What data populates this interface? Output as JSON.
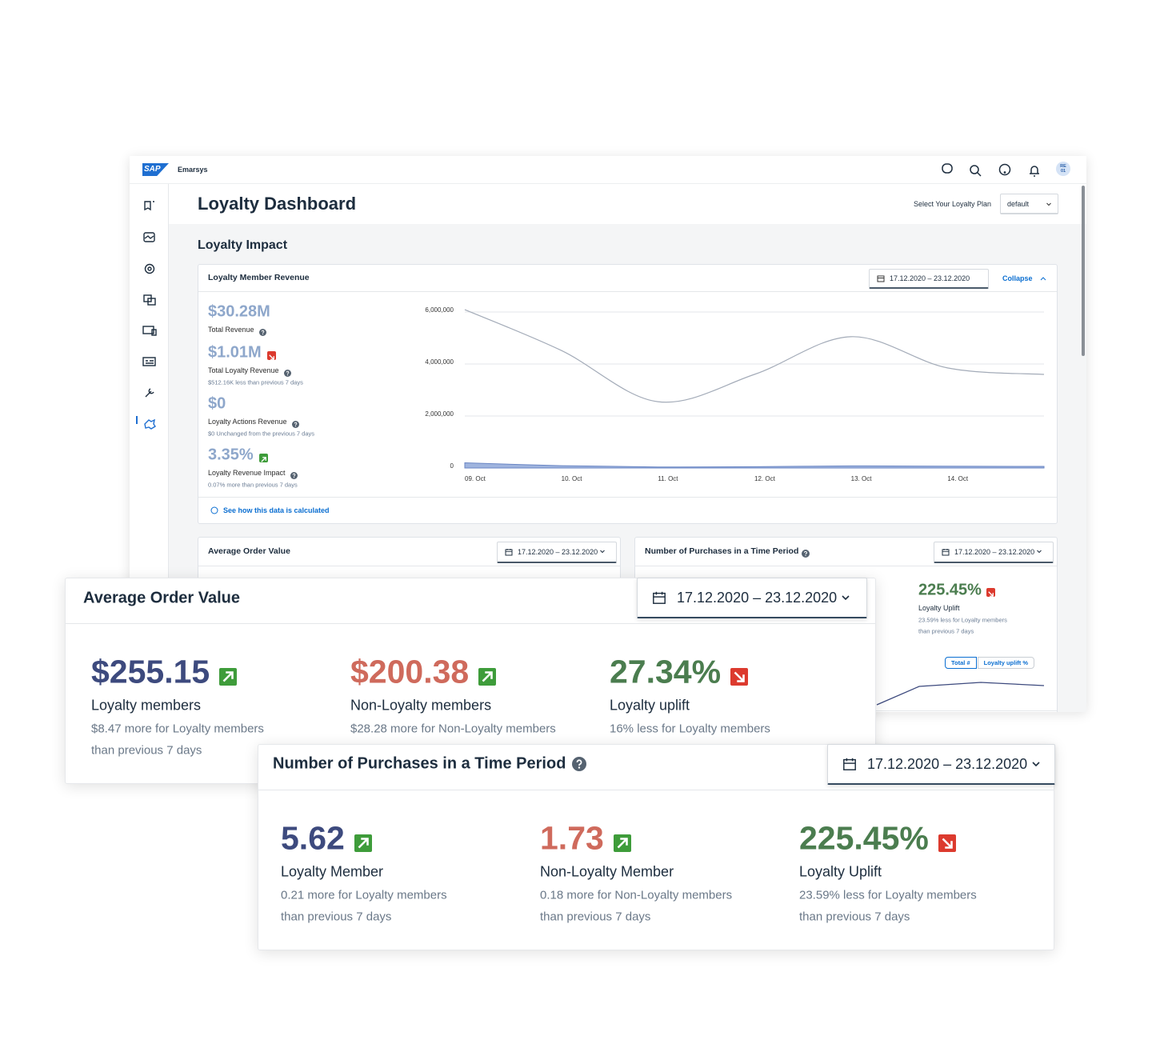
{
  "app": {
    "logo": "SAP",
    "name": "Emarsys",
    "avatar": [
      "RE",
      "01"
    ]
  },
  "page": {
    "title": "Loyalty Dashboard",
    "plan_label": "Select Your Loyalty Plan",
    "plan": "default",
    "section": "Loyalty Impact"
  },
  "revenue_card": {
    "title": "Loyalty Member Revenue",
    "date": "17.12.2020 – 23.12.2020",
    "collapse": "Collapse",
    "link": "See how this data is calculated",
    "kpis": [
      {
        "value": "$30.28M",
        "label": "Total Revenue",
        "help": true
      },
      {
        "value": "$1.01M",
        "trend": "down",
        "label": "Total Loyalty Revenue",
        "help": true,
        "note": "$512.16K less than previous 7 days"
      },
      {
        "value": "$0",
        "label": "Loyalty Actions Revenue",
        "help": true,
        "note": "$0 Unchanged from the previous 7 days"
      },
      {
        "value": "3.35%",
        "trend": "up",
        "label": "Loyalty Revenue Impact",
        "help": true,
        "note": "0.07% more than previous 7 days"
      }
    ]
  },
  "chart_data": {
    "type": "line",
    "categories": [
      "09. Oct",
      "10. Oct",
      "11. Oct",
      "12. Oct",
      "13. Oct",
      "14. Oct",
      null
    ],
    "series": [
      {
        "color": "#a3abb8",
        "kind": "line",
        "values": [
          6090000,
          4520000,
          2550000,
          3600000,
          5050000,
          3850000,
          3600000
        ]
      },
      {
        "color": "#7f9bd3",
        "kind": "area",
        "values": [
          200000,
          90000,
          40000,
          50000,
          80000,
          70000,
          60000
        ]
      }
    ],
    "ylim": [
      0,
      6000000
    ],
    "yticks": [
      0,
      {
        "value": 2000000,
        "label": "2,000,000"
      },
      {
        "value": 4000000,
        "label": "4,000,000"
      },
      {
        "value": 6000000,
        "label": "6,000,000"
      }
    ],
    "grid": true
  },
  "small_cards": [
    {
      "title": "Average Order Value",
      "date": "17.12.2020 – 23.12.2020"
    },
    {
      "title": "Number of Purchases in a Time Period",
      "help": true,
      "date": "17.12.2020 – 23.12.2020",
      "kpi": {
        "value": "225.45%",
        "trend": "down",
        "label": "Loyalty Uplift",
        "note": [
          "23.59% less for Loyalty members",
          "than previous 7 days"
        ]
      },
      "toggles": [
        "Total #",
        "Loyalty uplift %"
      ]
    }
  ],
  "overlays": [
    {
      "title": "Average Order Value",
      "date": "17.12.2020 – 23.12.2020",
      "kpis": [
        {
          "value": "$255.15",
          "trend": "up",
          "color": "#3d4a7e",
          "label": "Loyalty members",
          "note": [
            "$8.47 more for Loyalty members",
            "than previous 7 days"
          ]
        },
        {
          "value": "$200.38",
          "trend": "up",
          "color": "#cf6a5c",
          "label": "Non-Loyalty members",
          "note": [
            "$28.28 more for Non-Loyalty members"
          ]
        },
        {
          "value": "27.34%",
          "trend": "down",
          "color": "#4b7d4f",
          "label": "Loyalty uplift",
          "note": [
            "16% less for Loyalty members"
          ]
        }
      ]
    },
    {
      "title": "Number of Purchases in a Time Period",
      "help": true,
      "date": "17.12.2020 – 23.12.2020",
      "kpis": [
        {
          "value": "5.62",
          "trend": "up",
          "color": "#3d4a7e",
          "label": "Loyalty Member",
          "note": [
            "0.21 more for Loyalty members",
            "than previous 7 days"
          ]
        },
        {
          "value": "1.73",
          "trend": "up",
          "color": "#cf6a5c",
          "label": "Non-Loyalty Member",
          "note": [
            "0.18 more for Non-Loyalty members",
            "than previous 7 days"
          ]
        },
        {
          "value": "225.45%",
          "trend": "down",
          "color": "#4b7d4f",
          "label": "Loyalty Uplift",
          "note": [
            "23.59% less for Loyalty members",
            "than previous 7 days"
          ]
        }
      ]
    }
  ]
}
